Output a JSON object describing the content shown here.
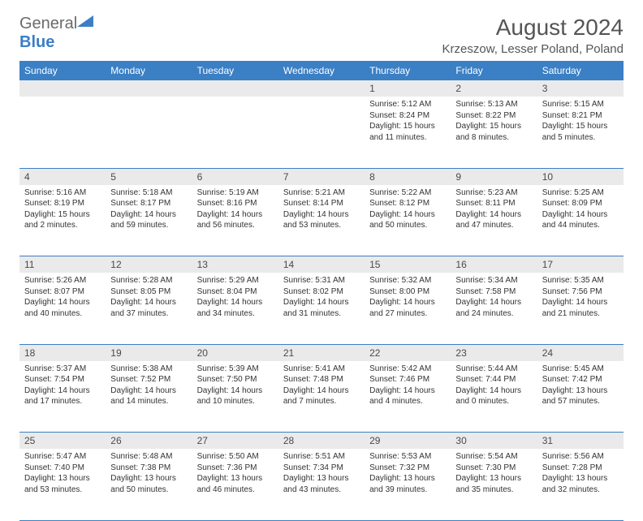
{
  "logo": {
    "word1": "General",
    "word2": "Blue"
  },
  "title": "August 2024",
  "location": "Krzeszow, Lesser Poland, Poland",
  "weekdays": [
    "Sunday",
    "Monday",
    "Tuesday",
    "Wednesday",
    "Thursday",
    "Friday",
    "Saturday"
  ],
  "colors": {
    "header_bg": "#3b7fc4",
    "header_fg": "#ffffff",
    "daynum_bg": "#eaeaea",
    "border": "#3b7fc4",
    "logo_gray": "#6b6b6b",
    "logo_blue": "#3b7fc4"
  },
  "weeks": [
    [
      null,
      null,
      null,
      null,
      {
        "n": "1",
        "sr": "5:12 AM",
        "ss": "8:24 PM",
        "dl": "15 hours and 11 minutes."
      },
      {
        "n": "2",
        "sr": "5:13 AM",
        "ss": "8:22 PM",
        "dl": "15 hours and 8 minutes."
      },
      {
        "n": "3",
        "sr": "5:15 AM",
        "ss": "8:21 PM",
        "dl": "15 hours and 5 minutes."
      }
    ],
    [
      {
        "n": "4",
        "sr": "5:16 AM",
        "ss": "8:19 PM",
        "dl": "15 hours and 2 minutes."
      },
      {
        "n": "5",
        "sr": "5:18 AM",
        "ss": "8:17 PM",
        "dl": "14 hours and 59 minutes."
      },
      {
        "n": "6",
        "sr": "5:19 AM",
        "ss": "8:16 PM",
        "dl": "14 hours and 56 minutes."
      },
      {
        "n": "7",
        "sr": "5:21 AM",
        "ss": "8:14 PM",
        "dl": "14 hours and 53 minutes."
      },
      {
        "n": "8",
        "sr": "5:22 AM",
        "ss": "8:12 PM",
        "dl": "14 hours and 50 minutes."
      },
      {
        "n": "9",
        "sr": "5:23 AM",
        "ss": "8:11 PM",
        "dl": "14 hours and 47 minutes."
      },
      {
        "n": "10",
        "sr": "5:25 AM",
        "ss": "8:09 PM",
        "dl": "14 hours and 44 minutes."
      }
    ],
    [
      {
        "n": "11",
        "sr": "5:26 AM",
        "ss": "8:07 PM",
        "dl": "14 hours and 40 minutes."
      },
      {
        "n": "12",
        "sr": "5:28 AM",
        "ss": "8:05 PM",
        "dl": "14 hours and 37 minutes."
      },
      {
        "n": "13",
        "sr": "5:29 AM",
        "ss": "8:04 PM",
        "dl": "14 hours and 34 minutes."
      },
      {
        "n": "14",
        "sr": "5:31 AM",
        "ss": "8:02 PM",
        "dl": "14 hours and 31 minutes."
      },
      {
        "n": "15",
        "sr": "5:32 AM",
        "ss": "8:00 PM",
        "dl": "14 hours and 27 minutes."
      },
      {
        "n": "16",
        "sr": "5:34 AM",
        "ss": "7:58 PM",
        "dl": "14 hours and 24 minutes."
      },
      {
        "n": "17",
        "sr": "5:35 AM",
        "ss": "7:56 PM",
        "dl": "14 hours and 21 minutes."
      }
    ],
    [
      {
        "n": "18",
        "sr": "5:37 AM",
        "ss": "7:54 PM",
        "dl": "14 hours and 17 minutes."
      },
      {
        "n": "19",
        "sr": "5:38 AM",
        "ss": "7:52 PM",
        "dl": "14 hours and 14 minutes."
      },
      {
        "n": "20",
        "sr": "5:39 AM",
        "ss": "7:50 PM",
        "dl": "14 hours and 10 minutes."
      },
      {
        "n": "21",
        "sr": "5:41 AM",
        "ss": "7:48 PM",
        "dl": "14 hours and 7 minutes."
      },
      {
        "n": "22",
        "sr": "5:42 AM",
        "ss": "7:46 PM",
        "dl": "14 hours and 4 minutes."
      },
      {
        "n": "23",
        "sr": "5:44 AM",
        "ss": "7:44 PM",
        "dl": "14 hours and 0 minutes."
      },
      {
        "n": "24",
        "sr": "5:45 AM",
        "ss": "7:42 PM",
        "dl": "13 hours and 57 minutes."
      }
    ],
    [
      {
        "n": "25",
        "sr": "5:47 AM",
        "ss": "7:40 PM",
        "dl": "13 hours and 53 minutes."
      },
      {
        "n": "26",
        "sr": "5:48 AM",
        "ss": "7:38 PM",
        "dl": "13 hours and 50 minutes."
      },
      {
        "n": "27",
        "sr": "5:50 AM",
        "ss": "7:36 PM",
        "dl": "13 hours and 46 minutes."
      },
      {
        "n": "28",
        "sr": "5:51 AM",
        "ss": "7:34 PM",
        "dl": "13 hours and 43 minutes."
      },
      {
        "n": "29",
        "sr": "5:53 AM",
        "ss": "7:32 PM",
        "dl": "13 hours and 39 minutes."
      },
      {
        "n": "30",
        "sr": "5:54 AM",
        "ss": "7:30 PM",
        "dl": "13 hours and 35 minutes."
      },
      {
        "n": "31",
        "sr": "5:56 AM",
        "ss": "7:28 PM",
        "dl": "13 hours and 32 minutes."
      }
    ]
  ],
  "labels": {
    "sunrise": "Sunrise: ",
    "sunset": "Sunset: ",
    "daylight": "Daylight: "
  }
}
